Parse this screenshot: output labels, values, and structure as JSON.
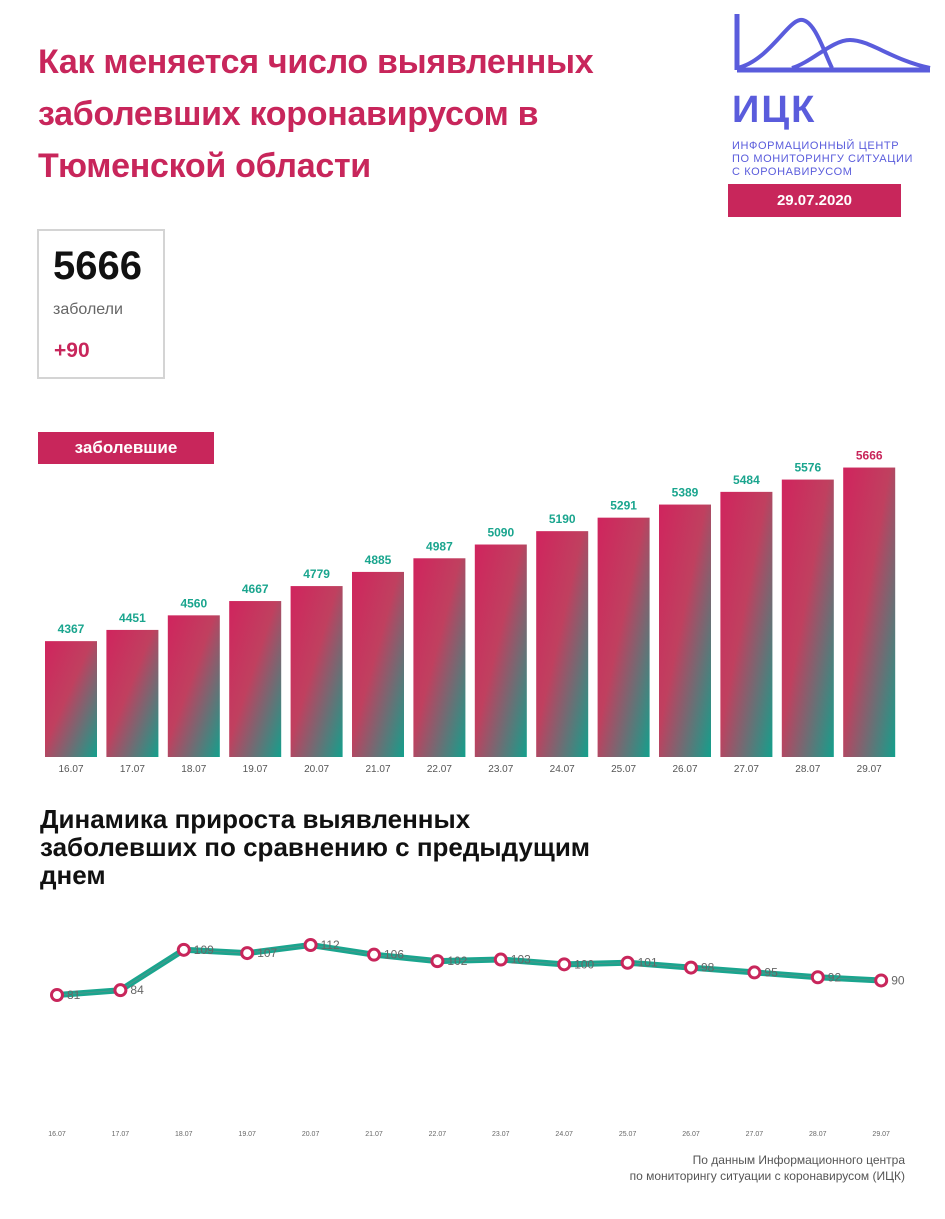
{
  "title": "Как меняется число выявленных заболевших коронавирусом в Тюменской области",
  "logo": {
    "abbr": "ИЦК",
    "subtitle_lines": [
      "ИНФОРМАЦИОННЫЙ ЦЕНТР",
      "ПО МОНИТОРИНГУ СИТУАЦИИ",
      "С КОРОНАВИРУСОМ"
    ]
  },
  "date": "29.07.2020",
  "summary": {
    "total": "5666",
    "label": "заболели",
    "delta": "+90"
  },
  "colors": {
    "accent": "#c8265b",
    "teal": "#1aa58e",
    "logo_blue": "#5a5cdc"
  },
  "chart_data": [
    {
      "type": "bar",
      "legend": "заболевшие",
      "categories": [
        "16.07",
        "17.07",
        "18.07",
        "19.07",
        "20.07",
        "21.07",
        "22.07",
        "23.07",
        "24.07",
        "25.07",
        "26.07",
        "27.07",
        "28.07",
        "29.07"
      ],
      "values": [
        4367,
        4451,
        4560,
        4667,
        4779,
        4885,
        4987,
        5090,
        5190,
        5291,
        5389,
        5484,
        5576,
        5666
      ],
      "ylim": [
        3500,
        5700
      ]
    },
    {
      "type": "line",
      "title": "Динамика прироста выявленных заболевших по сравнению с предыдущим днем",
      "categories": [
        "16.07",
        "17.07",
        "18.07",
        "19.07",
        "20.07",
        "21.07",
        "22.07",
        "23.07",
        "24.07",
        "25.07",
        "26.07",
        "27.07",
        "28.07",
        "29.07"
      ],
      "values": [
        81,
        84,
        109,
        107,
        112,
        106,
        102,
        103,
        100,
        101,
        98,
        95,
        92,
        90
      ],
      "ylim": [
        40,
        125
      ]
    }
  ],
  "footer": [
    "По данным Информационного центра",
    "по мониторингу ситуации с коронавирусом (ИЦК)"
  ]
}
